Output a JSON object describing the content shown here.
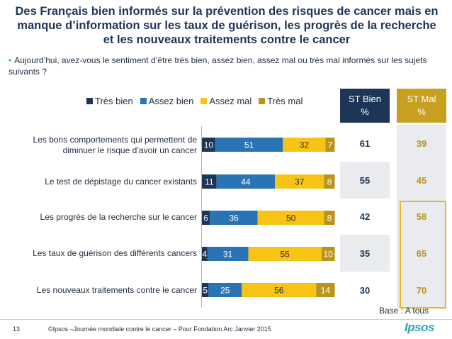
{
  "title": "Des Français bien informés sur la prévention des risques de cancer mais en manque d’information sur les taux de guérison, les progrès de la recherche et les nouveaux traitements contre le cancer",
  "question": "Aujourd’hui, avez-vous le sentiment d’être très bien, assez bien, assez mal ou très mal informés sur les sujets suivants ?",
  "headers": {
    "st_bien": "ST Bien",
    "st_mal": "ST Mal",
    "pct": "%"
  },
  "base_note": "Base : A tous",
  "footer": {
    "page": "13",
    "text": "©Ipsos –Journée mondiale contre le cancer – Pour Fondation Arc  Janvier 2015",
    "logo": "Ipsos"
  },
  "colors": {
    "tres_bien": "#1d3557",
    "assez_bien": "#2a74b6",
    "assez_mal": "#f7c416",
    "tres_mal": "#b8941c",
    "st_bien_header": "#1d3557",
    "st_mal_header": "#c7a020",
    "st_mal_values": "#b8941c"
  },
  "chart_data": {
    "type": "bar",
    "orientation": "horizontal",
    "stacked": true,
    "categories": [
      "Les bons comportements qui permettent de diminuer le risque d’avoir un cancer",
      "Le test de dépistage du cancer existants",
      "Les progrès de la recherche sur le cancer",
      "Les taux de guérison des différents cancers",
      "Les nouveaux traitements contre le cancer"
    ],
    "series": [
      {
        "name": "Très bien",
        "values": [
          10,
          11,
          6,
          4,
          5
        ]
      },
      {
        "name": "Assez bien",
        "values": [
          51,
          44,
          36,
          31,
          25
        ]
      },
      {
        "name": "Assez mal",
        "values": [
          32,
          37,
          50,
          55,
          56
        ]
      },
      {
        "name": "Très mal",
        "values": [
          7,
          8,
          8,
          10,
          14
        ]
      }
    ],
    "st_bien": [
      61,
      55,
      42,
      35,
      30
    ],
    "st_mal": [
      39,
      45,
      58,
      65,
      70
    ],
    "legend_position": "top",
    "grid": false
  }
}
